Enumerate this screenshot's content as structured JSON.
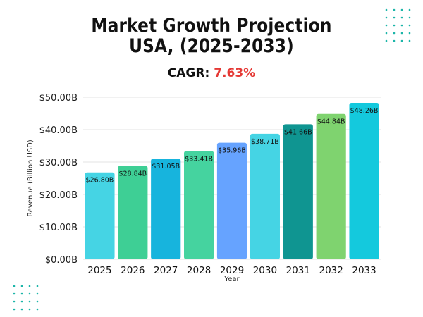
{
  "header": {
    "title_line1": "Market Growth Projection",
    "title_line2": "USA, (2025-2033)",
    "cagr_label": "CAGR:",
    "cagr_value": "7.63%"
  },
  "chart_data": {
    "type": "bar",
    "categories": [
      "2025",
      "2026",
      "2027",
      "2028",
      "2029",
      "2030",
      "2031",
      "2032",
      "2033"
    ],
    "values": [
      26.8,
      28.84,
      31.05,
      33.41,
      35.96,
      38.71,
      41.66,
      44.84,
      48.26
    ],
    "value_labels": [
      "$26.80B",
      "$28.84B",
      "$31.05B",
      "$33.41B",
      "$35.96B",
      "$38.71B",
      "$41.66B",
      "$44.84B",
      "$48.26B"
    ],
    "bar_colors": [
      "#45d4e4",
      "#3ecf95",
      "#17b4dd",
      "#45d39f",
      "#66a3ff",
      "#45d4e4",
      "#0f9591",
      "#7fd36f",
      "#14c9dd"
    ],
    "xlabel": "Year",
    "ylabel": "Revenue (Billion USD)",
    "ylim": [
      0,
      50
    ],
    "yticks": [
      0,
      10,
      20,
      30,
      40,
      50
    ],
    "ytick_labels": [
      "$0.00B",
      "$10.00B",
      "$20.00B",
      "$30.00B",
      "$40.00B",
      "$50.00B"
    ],
    "grid": true
  },
  "decor": {
    "dot_color": "#1ab5a8"
  }
}
